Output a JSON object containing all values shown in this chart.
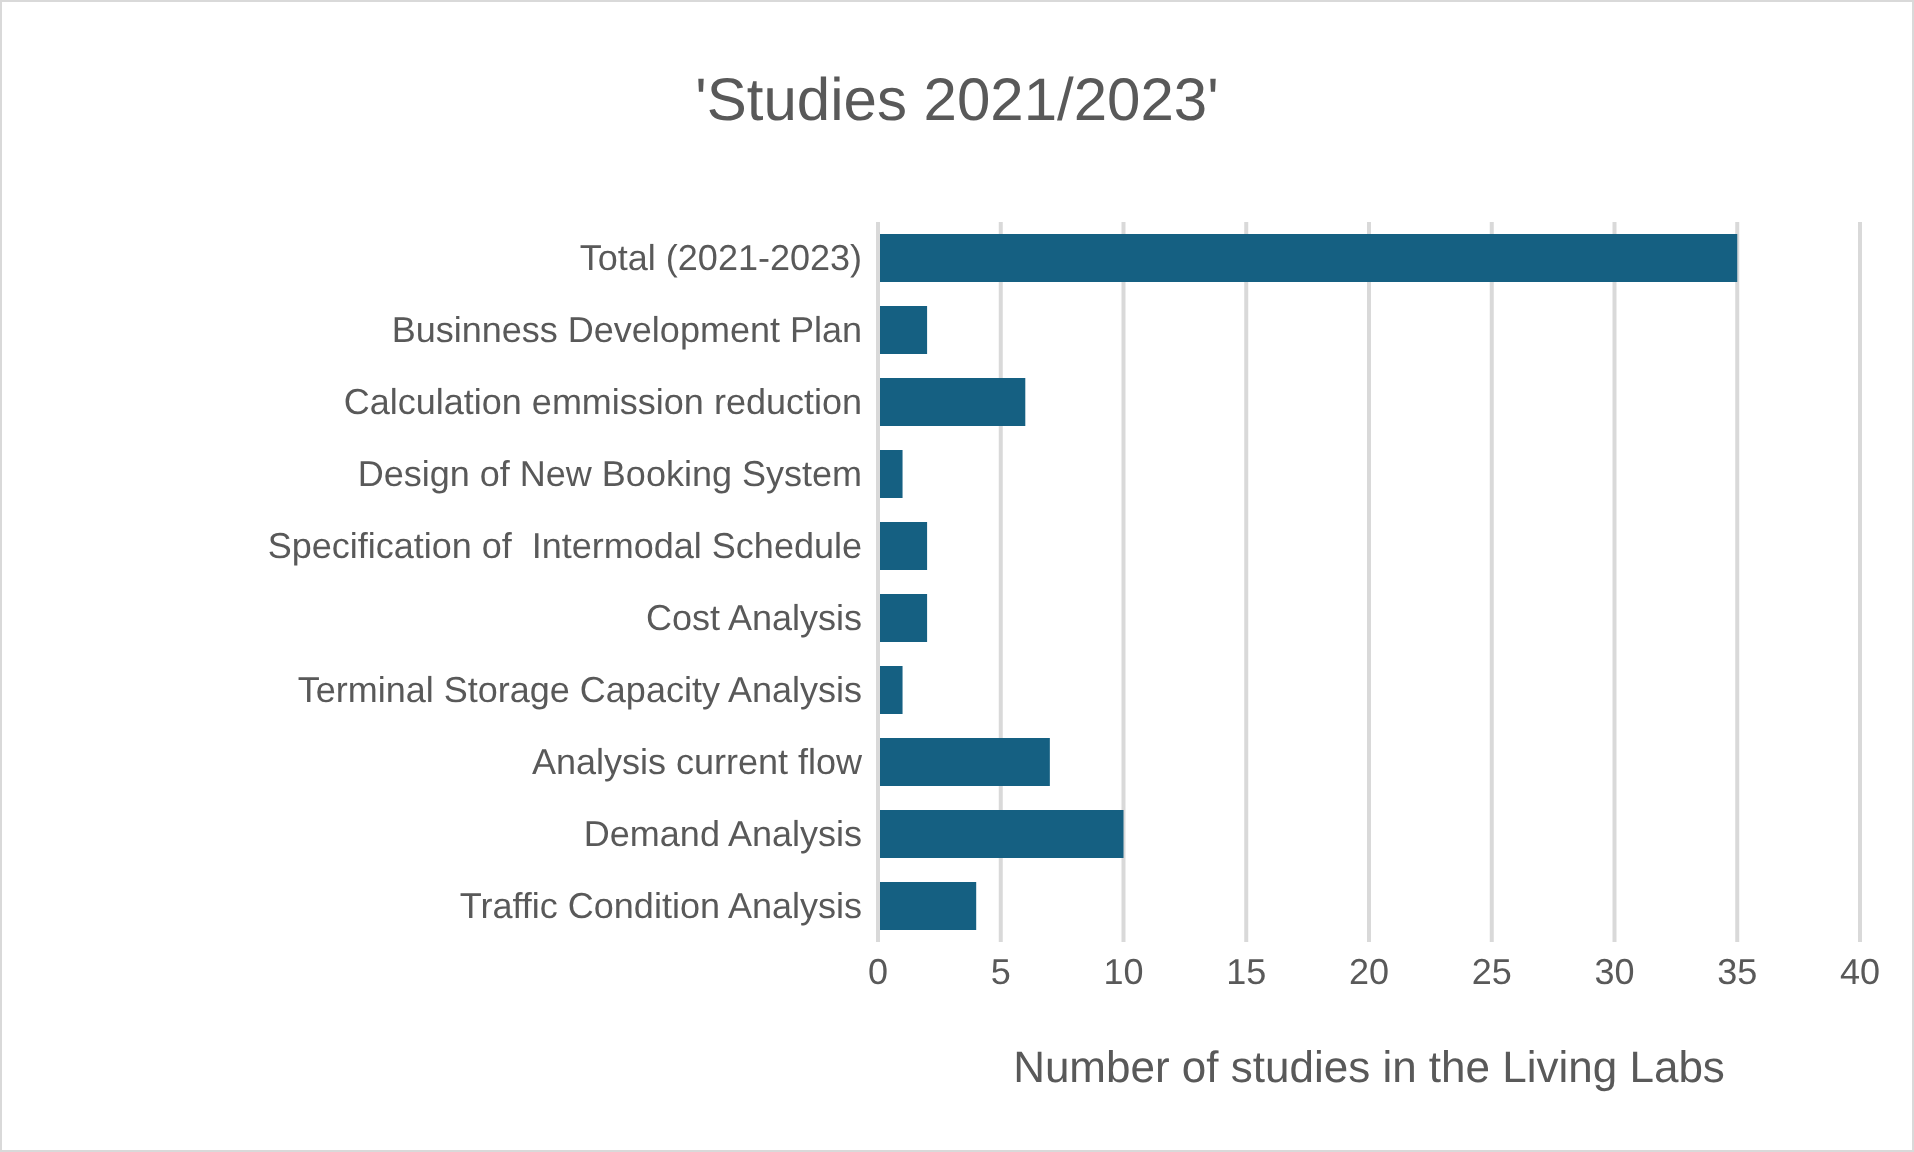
{
  "chart_data": {
    "type": "bar",
    "orientation": "horizontal",
    "title": "'Studies 2021/2023'",
    "xlabel": "Number of studies in the Living Labs",
    "categories": [
      "Total (2021-2023)",
      "Businness Development Plan",
      "Calculation emmission reduction",
      "Design of New Booking System",
      "Specification of  Intermodal Schedule",
      "Cost Analysis",
      "Terminal Storage Capacity Analysis",
      "Analysis current flow",
      "Demand Analysis",
      "Traffic Condition Analysis"
    ],
    "values": [
      35,
      2,
      6,
      1,
      2,
      2,
      1,
      7,
      10,
      4
    ],
    "color": "#156082",
    "xlim": [
      0,
      40
    ],
    "xticks": [
      0,
      5,
      10,
      15,
      20,
      25,
      30,
      35,
      40
    ],
    "grid": "x"
  }
}
